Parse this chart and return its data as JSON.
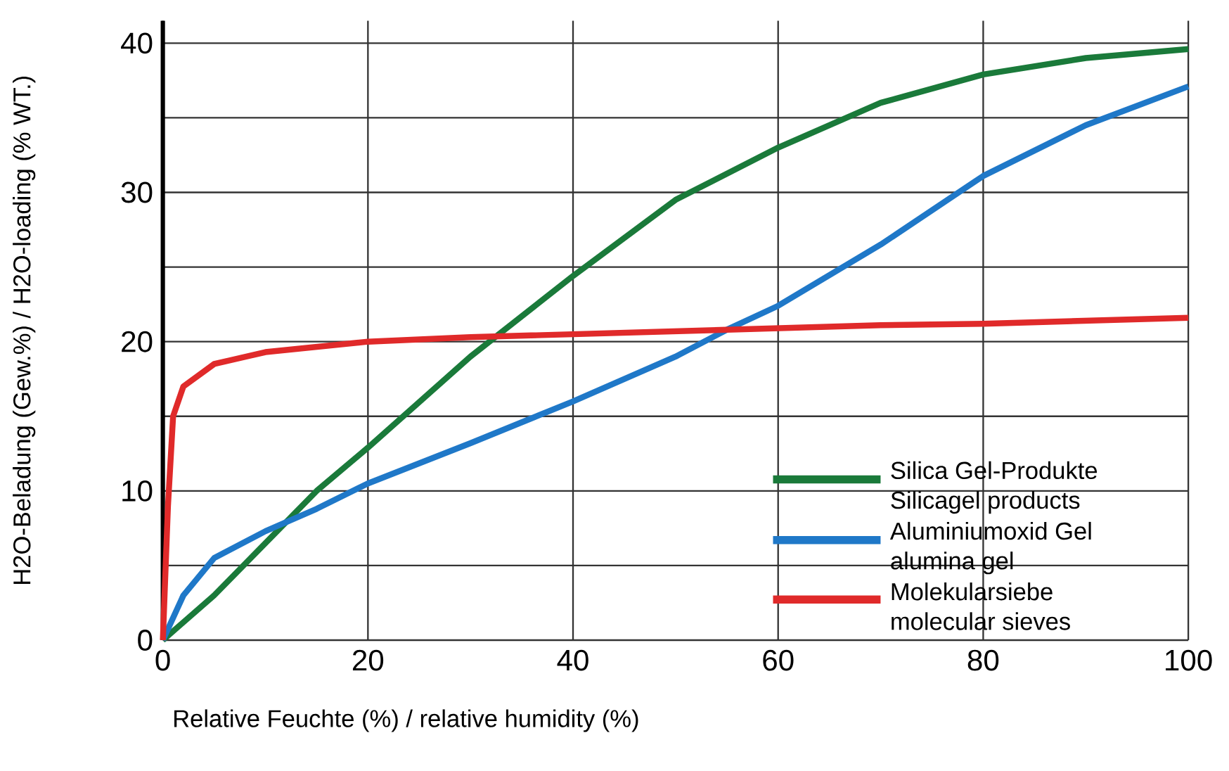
{
  "chart_data": {
    "type": "line",
    "xlabel": "Relative Feuchte (%) / relative humidity (%)",
    "ylabel": "H2O-Beladung (Gew.%) / H2O-loading (% WT.)",
    "xlim": [
      0,
      100
    ],
    "ylim": [
      0,
      41.5
    ],
    "xticks": [
      0,
      20,
      40,
      60,
      80,
      100
    ],
    "yticks": [
      0,
      {
        "value": 5,
        "label": null
      },
      10,
      {
        "value": 15,
        "label": null
      },
      20,
      {
        "value": 25,
        "label": null
      },
      30,
      {
        "value": 35,
        "label": null
      },
      40
    ],
    "grid": true,
    "legend": "bottom right",
    "marker": "none",
    "line_style": "solid",
    "series": [
      {
        "name": "Silica Gel-Produkte Silicagel products",
        "color": "#1a7a3a",
        "x": [
          0,
          5,
          10,
          15,
          20,
          30,
          40,
          50,
          60,
          70,
          80,
          90,
          100
        ],
        "values": [
          0,
          3,
          6.5,
          10,
          12.9,
          19,
          24.4,
          29.5,
          33,
          36,
          37.9,
          39,
          39.6
        ]
      },
      {
        "name": "Aluminiumoxid Gel alumina gel",
        "color": "#1f78c8",
        "x": [
          0,
          2,
          5,
          10,
          15,
          20,
          30,
          40,
          50,
          55,
          60,
          70,
          80,
          90,
          100
        ],
        "values": [
          0,
          3,
          5.5,
          7.3,
          8.8,
          10.5,
          13.2,
          16,
          19,
          20.8,
          22.4,
          26.5,
          31.1,
          34.5,
          37.1
        ]
      },
      {
        "name": "Molekularsiebe molecular sieves",
        "color": "#e02a2a",
        "x": [
          0,
          0.5,
          1,
          2,
          5,
          10,
          20,
          30,
          40,
          50,
          60,
          70,
          80,
          90,
          100
        ],
        "values": [
          0,
          9,
          15,
          17,
          18.5,
          19.3,
          20,
          20.3,
          20.5,
          20.7,
          20.9,
          21.1,
          21.2,
          21.4,
          21.6
        ]
      }
    ]
  }
}
